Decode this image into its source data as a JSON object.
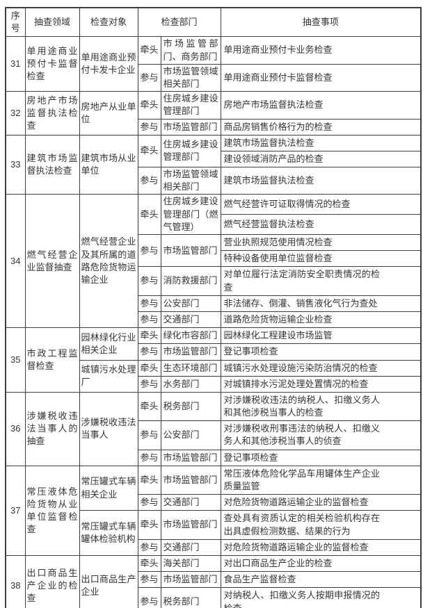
{
  "table": {
    "headers": {
      "no": "序号",
      "field": "抽查领域",
      "target": "检查对象",
      "department": "检查部门",
      "matters": "抽查事项"
    },
    "rows": [
      {
        "no": "31",
        "field": "单用途商业预付卡监督检查",
        "groups": [
          {
            "target": "单用途商业预付卡发卡企业",
            "entries": [
              {
                "role": "牵头",
                "dept": "市场监管部门、商务部门",
                "matters": [
                  "单用途商业预付卡业务检查"
                ]
              },
              {
                "role": "参与",
                "dept": "市场监管领域相关部门",
                "matters": [
                  "单用途商业预付卡监督检查"
                ]
              }
            ]
          }
        ]
      },
      {
        "no": "32",
        "field": "房地产市场监督执法检查",
        "groups": [
          {
            "target": "房地产从业单位",
            "entries": [
              {
                "role": "牵头",
                "dept": "住房城乡建设管理部门",
                "matters": [
                  "房地产市场监督执法检查"
                ]
              },
              {
                "role": "参与",
                "dept": "市场监管部门",
                "matters": [
                  "商品房销售价格行为的检查"
                ]
              }
            ]
          }
        ]
      },
      {
        "no": "33",
        "field": "建筑市场监督执法检查",
        "groups": [
          {
            "target": "建筑市场从业单位",
            "entries": [
              {
                "role": "牵头",
                "dept": "住房城乡建设管理部门",
                "matters": [
                  "建筑市场监督执法检查",
                  "建设领域消防产品的检查"
                ]
              },
              {
                "role": "参与",
                "dept": "市场监管领域相关部门",
                "matters": [
                  "建筑市场监督执法检查"
                ]
              }
            ]
          }
        ]
      },
      {
        "no": "34",
        "field": "燃气经营企业监督抽查",
        "groups": [
          {
            "target": "燃气经营企业及其所属的道路危险货物运输企业",
            "entries": [
              {
                "role": "牵头",
                "dept": "住房城乡建设管理部门（燃气管理）",
                "matters": [
                  "燃气经营许可证取得情况的检查",
                  "燃气经营监督执法检查"
                ]
              },
              {
                "role": "参与",
                "dept": "市场监管部门",
                "matters": [
                  "营业执照规范使用情况检查",
                  "特种设备使用单位监督检查"
                ]
              },
              {
                "role": "参与",
                "dept": "消防救援部门",
                "matters": [
                  "对单位履行法定消防安全职责情况的检查"
                ]
              },
              {
                "role": "参与",
                "dept": "公安部门",
                "matters": [
                  "非法储存、倒灌、销售液化气行为查处"
                ]
              },
              {
                "role": "参与",
                "dept": "交通部门",
                "matters": [
                  "道路危险货物运输企业检查"
                ]
              }
            ]
          }
        ]
      },
      {
        "no": "35",
        "field": "市政工程监督检查",
        "groups": [
          {
            "target": "园林绿化行业相关企业",
            "entries": [
              {
                "role": "牵头",
                "dept": "绿化市容部门",
                "matters": [
                  "园林绿化工程建设市场监管"
                ]
              },
              {
                "role": "参与",
                "dept": "市场监管部门",
                "matters": [
                  "登记事项检查"
                ]
              }
            ]
          },
          {
            "target": "城镇污水处理厂",
            "entries": [
              {
                "role": "牵头",
                "dept": "生态环境部门",
                "matters": [
                  "城镇污水处理设施污染防治情况的检查"
                ]
              },
              {
                "role": "参与",
                "dept": "水务部门",
                "matters": [
                  "对城镇排水污泥处理处置情况的检查"
                ]
              }
            ]
          }
        ]
      },
      {
        "no": "36",
        "field": "涉嫌税收违法当事人的抽查",
        "groups": [
          {
            "target": "涉嫌税收违法当事人",
            "entries": [
              {
                "role": "牵头",
                "dept": "税务部门",
                "matters": [
                  "对涉嫌税收违法的纳税人、扣缴义务人和其他涉税当事人的检查"
                ]
              },
              {
                "role": "参与",
                "dept": "公安部门",
                "matters": [
                  "对涉嫌税收刑事违法的纳税人、扣缴义务人和其他涉税当事人的侦查"
                ]
              },
              {
                "role": "参与",
                "dept": "市场监管部门",
                "matters": [
                  "登记事项检查"
                ]
              }
            ]
          }
        ]
      },
      {
        "no": "37",
        "field": "常压液体危险货物从业单位监督检查",
        "groups": [
          {
            "target": "常压罐式车辆相关企业",
            "entries": [
              {
                "role": "牵头",
                "dept": "市场监管部门",
                "matters": [
                  "常压液体危险化学品车用罐体生产企业质量监管"
                ]
              },
              {
                "role": "参与",
                "dept": "交通部门",
                "matters": [
                  "对危险货物道路运输企业的监督检查"
                ]
              }
            ]
          },
          {
            "target": "常压罐式车辆罐体检验机构",
            "entries": [
              {
                "role": "牵头",
                "dept": "市场监管部门",
                "matters": [
                  "查处具有资质认定的相关检验机构存在出具虚假检测数据、结果的行为"
                ]
              },
              {
                "role": "参与",
                "dept": "交通部门",
                "matters": [
                  "对危险货物道路运输企业的监督检查"
                ]
              }
            ]
          }
        ]
      },
      {
        "no": "38",
        "field": "出口商品生产企业的检查",
        "groups": [
          {
            "target": "出口商品生产企业",
            "entries": [
              {
                "role": "牵头",
                "dept": "海关部门",
                "matters": [
                  "对出口商品生产企业的检查"
                ]
              },
              {
                "role": "参与",
                "dept": "市场监管部门",
                "matters": [
                  "食品生产监督检查"
                ]
              },
              {
                "role": "参与",
                "dept": "税务部门",
                "matters": [
                  "对纳税人、扣缴义务人按期申报情况的检查"
                ]
              }
            ]
          }
        ]
      }
    ]
  },
  "colors": {
    "text": "#333333",
    "border": "#3d3d3d",
    "background": "#ffffff"
  }
}
